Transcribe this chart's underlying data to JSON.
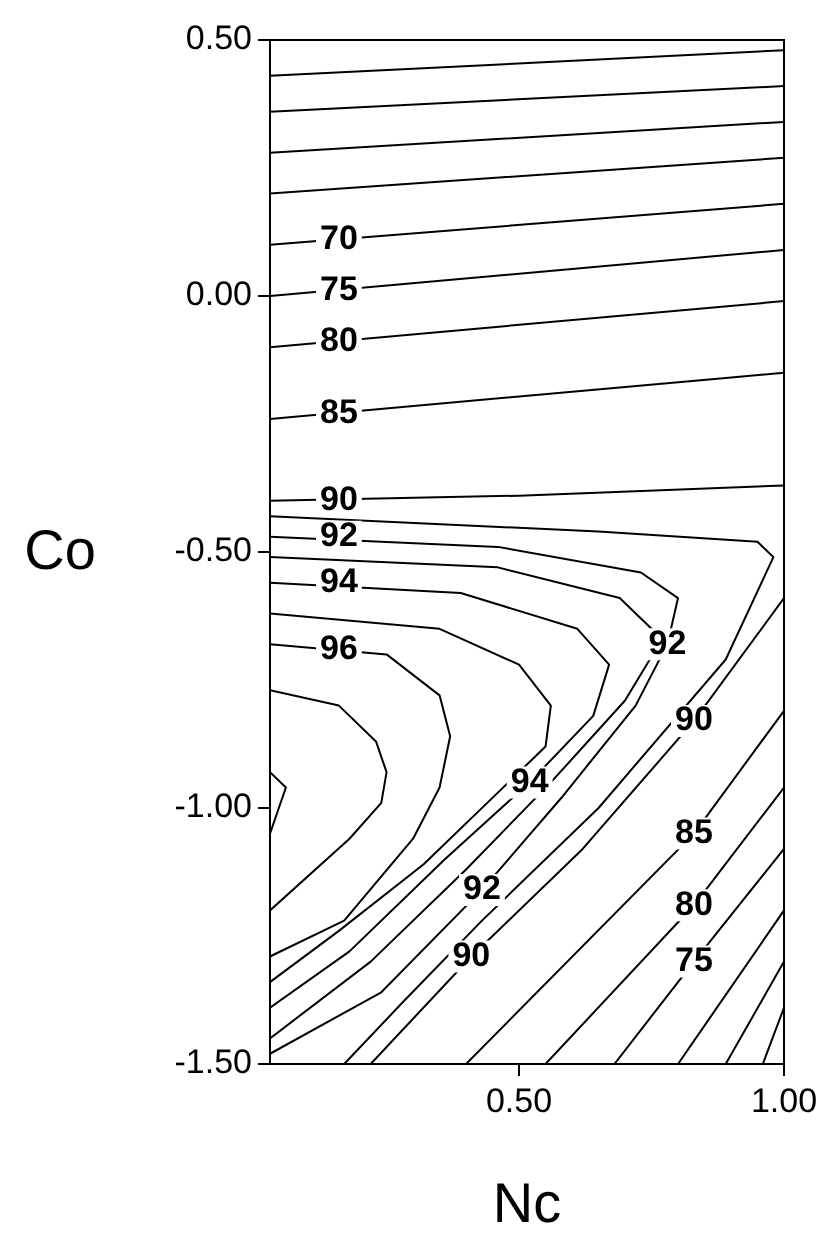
{
  "chart_data": {
    "type": "line",
    "xlabel": "Nc",
    "ylabel": "Co",
    "xlim": [
      0.03,
      1
    ],
    "ylim": [
      -1.5,
      0.5
    ],
    "xticks": [
      {
        "value": 0.5,
        "label": "0.50"
      },
      {
        "value": 1,
        "label": "1.00"
      }
    ],
    "yticks": [
      {
        "value": -1.5,
        "label": "-1.50"
      },
      {
        "value": -1,
        "label": "-1.00"
      },
      {
        "value": -0.5,
        "label": "-0.50"
      },
      {
        "value": 0,
        "label": "0.00"
      },
      {
        "value": 0.5,
        "label": "0.50"
      }
    ],
    "grid": false,
    "marker": "none",
    "line_style": "solid",
    "series": [
      {
        "color": "#000000",
        "x": [
          0.03,
          1
        ],
        "values": [
          0.43,
          0.48
        ]
      },
      {
        "color": "#000000",
        "x": [
          0.03,
          1
        ],
        "values": [
          0.36,
          0.41
        ]
      },
      {
        "color": "#000000",
        "x": [
          0.03,
          1,
          null,
          0.96,
          1
        ],
        "values": [
          0.28,
          0.34,
          null,
          -1.5,
          -1.39
        ]
      },
      {
        "color": "#000000",
        "x": [
          0.03,
          1,
          null,
          0.89,
          1
        ],
        "values": [
          0.2,
          0.27,
          null,
          -1.5,
          -1.3
        ]
      },
      {
        "color": "#000000",
        "x": [
          0.03,
          1,
          null,
          0.8,
          1
        ],
        "values": [
          0.1,
          0.18,
          null,
          -1.5,
          -1.2
        ]
      },
      {
        "color": "#000000",
        "x": [
          0.03,
          1,
          null,
          0.68,
          0.83,
          1
        ],
        "values": [
          0,
          0.09,
          null,
          -1.5,
          -1.3,
          -1.08
        ]
      },
      {
        "color": "#000000",
        "x": [
          0.03,
          1,
          null,
          0.55,
          0.83,
          1
        ],
        "values": [
          -0.1,
          -0.01,
          null,
          -1.5,
          -1.19,
          -0.96
        ]
      },
      {
        "color": "#000000",
        "x": [
          0.03,
          0.89,
          1,
          null,
          0.4,
          0.83,
          1
        ],
        "values": [
          -0.24,
          -0.16,
          -0.15,
          null,
          -1.5,
          -1.05,
          -0.81
        ]
      },
      {
        "color": "#000000",
        "x": [
          0.03,
          0.5,
          1,
          null,
          0.22,
          0.41,
          0.62,
          0.83,
          1
        ],
        "values": [
          -0.4,
          -0.39,
          -0.37,
          null,
          -1.5,
          -1.29,
          -1.08,
          -0.83,
          -0.59
        ]
      },
      {
        "color": "#000000",
        "x": [
          0.03,
          0.65,
          0.95,
          0.98,
          0.89,
          0.65,
          0.43,
          0.28,
          0.17
        ],
        "values": [
          -0.43,
          -0.46,
          -0.48,
          -0.51,
          -0.71,
          -1,
          -1.22,
          -1.38,
          -1.5
        ]
      },
      {
        "color": "#000000",
        "x": [
          0.03,
          0.46,
          0.73,
          0.8,
          0.78,
          0.72,
          0.58,
          0.43,
          0.24,
          0.03
        ],
        "values": [
          -0.47,
          -0.49,
          -0.54,
          -0.59,
          -0.68,
          -0.8,
          -0.98,
          -1.16,
          -1.36,
          -1.48
        ]
      },
      {
        "color": "#000000",
        "x": [
          0.03,
          0.46,
          0.69,
          0.77,
          0.7,
          0.56,
          0.4,
          0.22,
          0.03
        ],
        "values": [
          -0.51,
          -0.53,
          -0.59,
          -0.67,
          -0.79,
          -0.95,
          -1.12,
          -1.3,
          -1.45
        ]
      },
      {
        "color": "#000000",
        "x": [
          0.03,
          0.39,
          0.61,
          0.67,
          0.64,
          0.52,
          0.36,
          0.18,
          0.03
        ],
        "values": [
          -0.56,
          -0.58,
          -0.65,
          -0.72,
          -0.82,
          -0.95,
          -1.1,
          -1.28,
          -1.39
        ]
      },
      {
        "color": "#000000",
        "x": [
          0.03,
          0.35,
          0.5,
          0.56,
          0.55,
          0.46,
          0.32,
          0.16,
          0.03
        ],
        "values": [
          -0.62,
          -0.65,
          -0.72,
          -0.8,
          -0.88,
          -0.97,
          -1.11,
          -1.24,
          -1.34
        ]
      },
      {
        "color": "#000000",
        "x": [
          0.03,
          0.25,
          0.35,
          0.37,
          0.35,
          0.3,
          0.17,
          0.03
        ],
        "values": [
          -0.68,
          -0.7,
          -0.78,
          -0.86,
          -0.96,
          -1.06,
          -1.22,
          -1.29
        ]
      },
      {
        "color": "#000000",
        "x": [
          0.03,
          0.16,
          0.23,
          0.25,
          0.24,
          0.18,
          0.03
        ],
        "values": [
          -0.77,
          -0.8,
          -0.87,
          -0.93,
          -0.99,
          -1.06,
          -1.2
        ]
      },
      {
        "color": "#000000",
        "x": [
          0.03,
          0.06,
          0.04,
          0.03
        ],
        "values": [
          -0.93,
          -0.96,
          -1.02,
          -1.05
        ]
      }
    ],
    "annotations": [
      {
        "text": "70",
        "x": 0.16,
        "y": 0.11
      },
      {
        "text": "75",
        "x": 0.16,
        "y": 0.01
      },
      {
        "text": "80",
        "x": 0.16,
        "y": -0.09
      },
      {
        "text": "85",
        "x": 0.16,
        "y": -0.23
      },
      {
        "text": "90",
        "x": 0.16,
        "y": -0.4
      },
      {
        "text": "92",
        "x": 0.16,
        "y": -0.47
      },
      {
        "text": "94",
        "x": 0.16,
        "y": -0.56
      },
      {
        "text": "96",
        "x": 0.16,
        "y": -0.69
      },
      {
        "text": "92",
        "x": 0.78,
        "y": -0.68
      },
      {
        "text": "90",
        "x": 0.83,
        "y": -0.83
      },
      {
        "text": "94",
        "x": 0.52,
        "y": -0.95
      },
      {
        "text": "92",
        "x": 0.43,
        "y": -1.16
      },
      {
        "text": "90",
        "x": 0.41,
        "y": -1.29
      },
      {
        "text": "85",
        "x": 0.83,
        "y": -1.05
      },
      {
        "text": "80",
        "x": 0.83,
        "y": -1.19
      },
      {
        "text": "75",
        "x": 0.83,
        "y": -1.3
      }
    ]
  }
}
